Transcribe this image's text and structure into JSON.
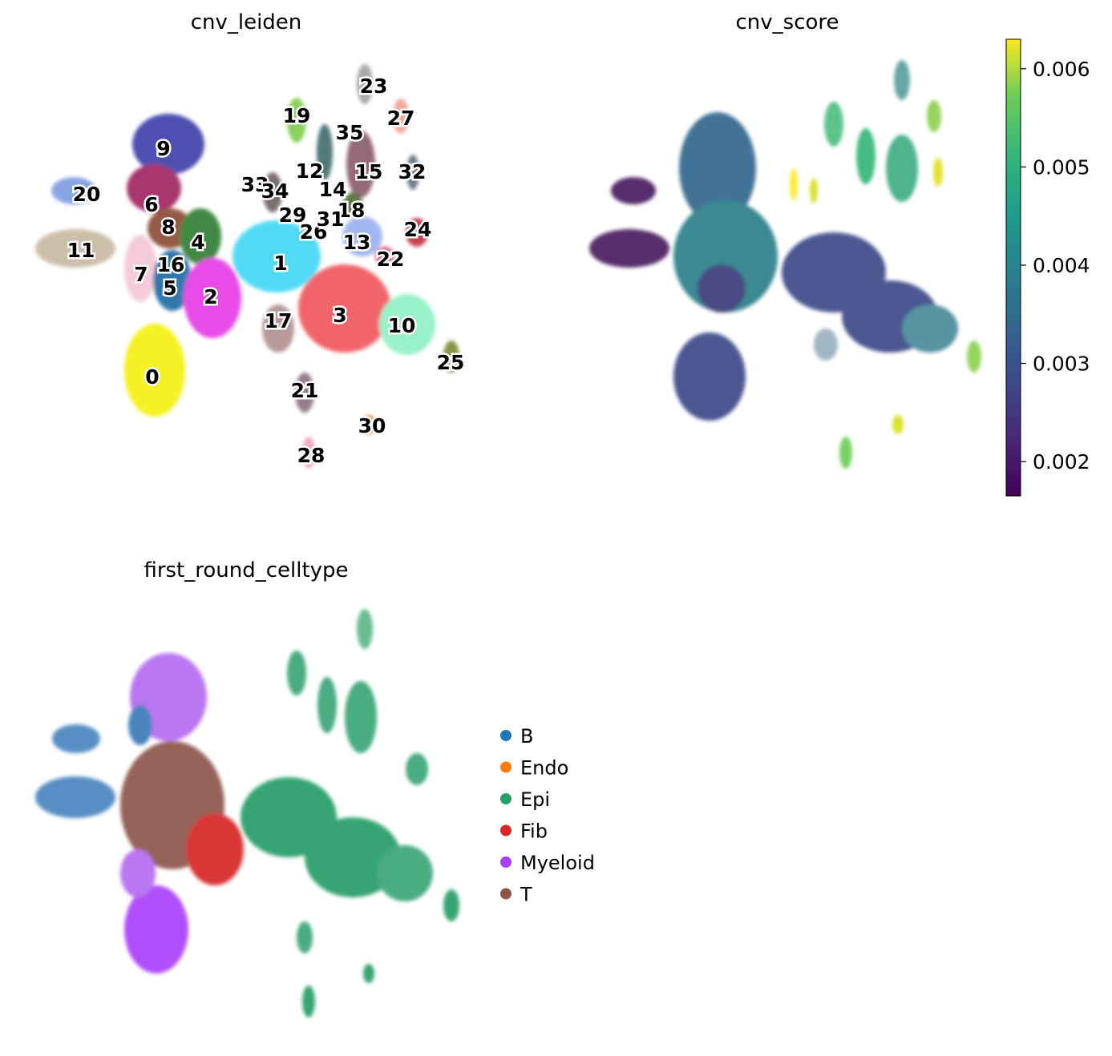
{
  "chart_data": [
    {
      "type": "scatter",
      "title": "cnv_leiden",
      "xlabel": "",
      "ylabel": "",
      "grid": false,
      "color_by": "categorical",
      "cluster_labels": [
        "0",
        "1",
        "2",
        "3",
        "4",
        "5",
        "6",
        "7",
        "8",
        "9",
        "10",
        "11",
        "12",
        "13",
        "14",
        "15",
        "16",
        "17",
        "18",
        "19",
        "20",
        "21",
        "22",
        "23",
        "24",
        "25",
        "26",
        "27",
        "28",
        "29",
        "30",
        "31",
        "32",
        "33",
        "34",
        "35"
      ]
    },
    {
      "type": "scatter",
      "title": "cnv_score",
      "xlabel": "",
      "ylabel": "",
      "grid": false,
      "color_by": "continuous",
      "colormap": "viridis",
      "colorbar": {
        "vmin": 0.00165,
        "vmax": 0.0063,
        "ticks": [
          0.002,
          0.003,
          0.004,
          0.005,
          0.006
        ],
        "tick_labels": [
          "0.002",
          "0.003",
          "0.004",
          "0.005",
          "0.006"
        ]
      }
    },
    {
      "type": "scatter",
      "title": "first_round_celltype",
      "xlabel": "",
      "ylabel": "",
      "grid": false,
      "color_by": "categorical",
      "legend_position": "right",
      "legend": [
        {
          "name": "B",
          "color": "#1f77b4"
        },
        {
          "name": "Endo",
          "color": "#ff7f0e"
        },
        {
          "name": "Epi",
          "color": "#279e68"
        },
        {
          "name": "Fib",
          "color": "#d62728"
        },
        {
          "name": "Myeloid",
          "color": "#aa40fc"
        },
        {
          "name": "T",
          "color": "#8c564b"
        }
      ]
    }
  ]
}
